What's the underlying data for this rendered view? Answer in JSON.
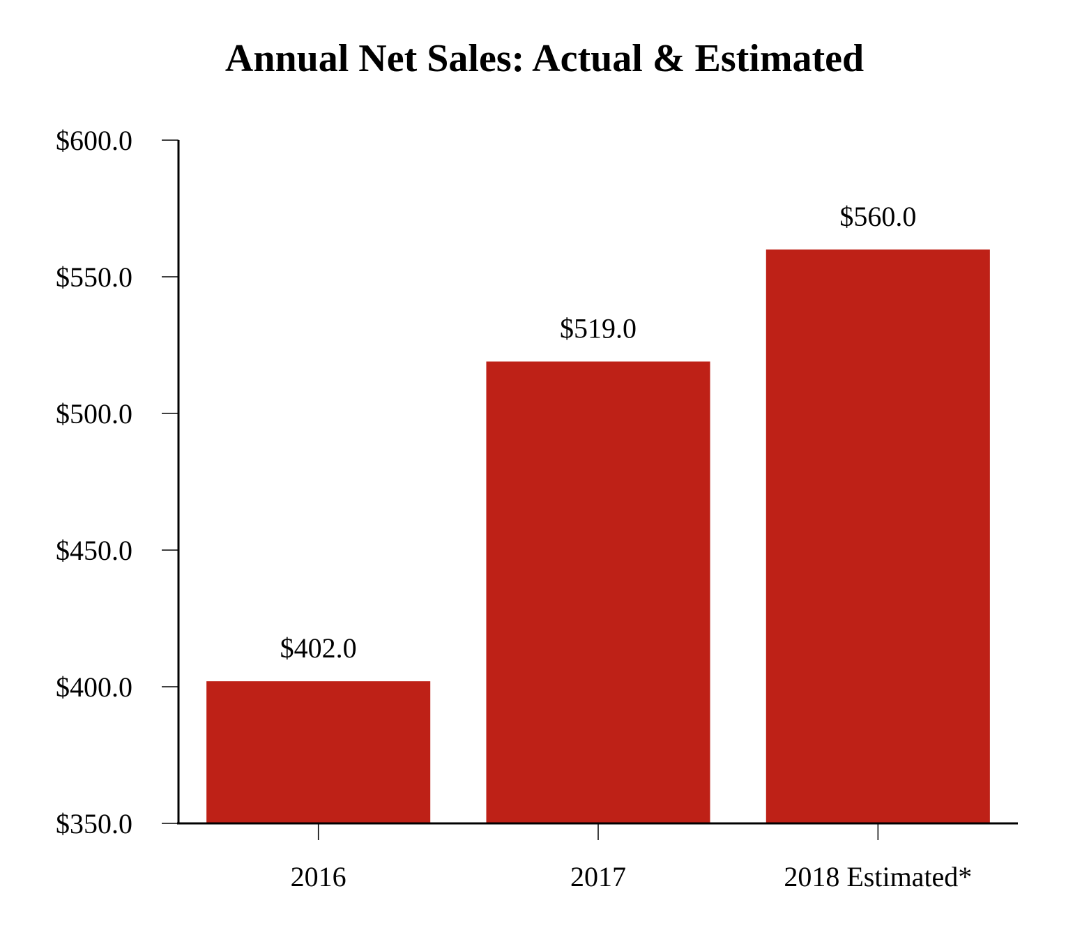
{
  "chart_data": {
    "type": "bar",
    "title": "Annual Net Sales: Actual & Estimated",
    "xlabel": "",
    "ylabel": "",
    "categories": [
      "2016",
      "2017",
      "2018 Estimated*"
    ],
    "values": [
      402.0,
      519.0,
      560.0
    ],
    "data_labels": [
      "$402.0",
      "$519.0",
      "$560.0"
    ],
    "ylim": [
      350,
      600
    ],
    "yticks": [
      350,
      400,
      450,
      500,
      550,
      600
    ],
    "ytick_labels": [
      "$350.0",
      "$400.0",
      "$450.0",
      "$500.0",
      "$550.0",
      "$600.0"
    ],
    "grid": false,
    "legend": "none",
    "bar_color": "#be2117",
    "axis_color": "#000000"
  }
}
